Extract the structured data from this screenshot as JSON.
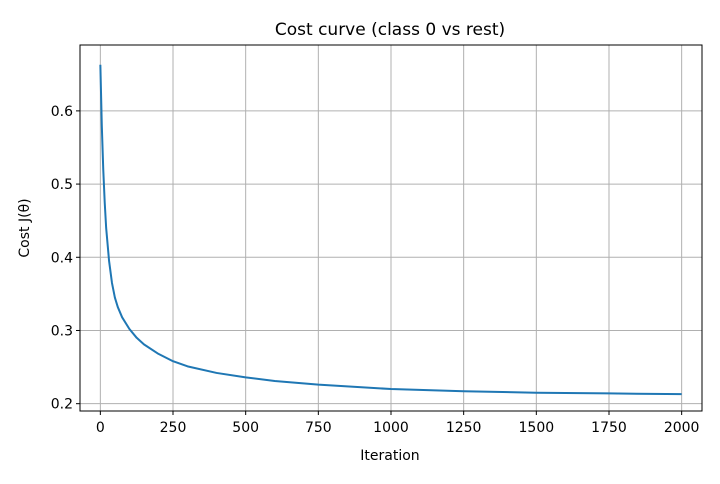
{
  "chart_data": {
    "type": "line",
    "title": "Cost curve (class 0 vs rest)",
    "xlabel": "Iteration",
    "ylabel": "Cost J(θ)",
    "xlim": [
      -70,
      2070
    ],
    "ylim": [
      0.19,
      0.69
    ],
    "xticks": [
      0,
      250,
      500,
      750,
      1000,
      1250,
      1500,
      1750,
      2000
    ],
    "xtick_labels": [
      "0",
      "250",
      "500",
      "750",
      "1000",
      "1250",
      "1500",
      "1750",
      "2000"
    ],
    "yticks": [
      0.2,
      0.3,
      0.4,
      0.5,
      0.6
    ],
    "ytick_labels": [
      "0.2",
      "0.3",
      "0.4",
      "0.5",
      "0.6"
    ],
    "grid": true,
    "series": [
      {
        "color": "#1f77b4",
        "x": [
          0,
          5,
          10,
          15,
          20,
          30,
          40,
          50,
          60,
          75,
          100,
          125,
          150,
          200,
          250,
          300,
          400,
          500,
          600,
          750,
          1000,
          1250,
          1500,
          1750,
          2000
        ],
        "y": [
          0.663,
          0.58,
          0.52,
          0.475,
          0.44,
          0.395,
          0.365,
          0.345,
          0.332,
          0.318,
          0.302,
          0.29,
          0.281,
          0.268,
          0.258,
          0.251,
          0.242,
          0.236,
          0.231,
          0.226,
          0.22,
          0.217,
          0.215,
          0.214,
          0.213
        ]
      }
    ]
  }
}
